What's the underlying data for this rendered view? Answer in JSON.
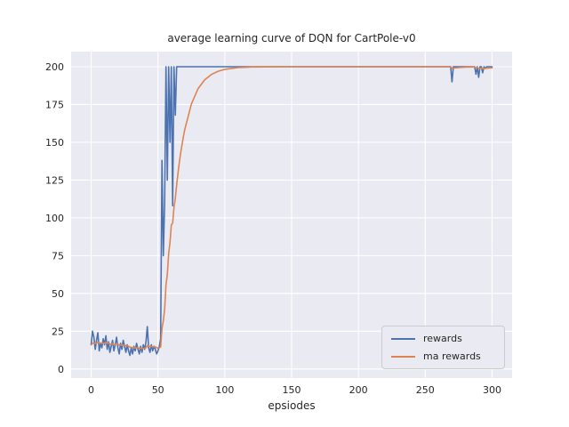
{
  "figure": {
    "title": "average learning curve of DQN for CartPole-v0",
    "xlabel": "epsiodes",
    "background": "#ffffff",
    "axes_background": "#eaeaf2",
    "grid_color": "#ffffff",
    "text_color": "#262626"
  },
  "legend": {
    "entries": [
      {
        "label": "rewards",
        "color": "#4c72b0"
      },
      {
        "label": "ma rewards",
        "color": "#dd8452"
      }
    ]
  },
  "chart_data": {
    "type": "line",
    "title": "average learning curve of DQN for CartPole-v0",
    "xlabel": "epsiodes",
    "xlim": [
      -15,
      315
    ],
    "ylim": [
      -6,
      210
    ],
    "xticks": [
      0,
      50,
      100,
      150,
      200,
      250,
      300
    ],
    "yticks": [
      0,
      25,
      50,
      75,
      100,
      125,
      150,
      175,
      200
    ],
    "grid": true,
    "legend_position": "lower right",
    "x": [
      0,
      1,
      2,
      3,
      4,
      5,
      6,
      7,
      8,
      9,
      10,
      11,
      12,
      13,
      14,
      15,
      16,
      17,
      18,
      19,
      20,
      21,
      22,
      23,
      24,
      25,
      26,
      27,
      28,
      29,
      30,
      31,
      32,
      33,
      34,
      35,
      36,
      37,
      38,
      39,
      40,
      41,
      42,
      43,
      44,
      45,
      46,
      47,
      48,
      49,
      50,
      51,
      52,
      53,
      54,
      55,
      56,
      57,
      58,
      59,
      60,
      61,
      62,
      63,
      64,
      65,
      66,
      67,
      68,
      69,
      70,
      75,
      80,
      85,
      90,
      95,
      100,
      105,
      110,
      115,
      120,
      130,
      140,
      150,
      160,
      170,
      180,
      190,
      200,
      210,
      220,
      230,
      240,
      250,
      260,
      265,
      268,
      269,
      270,
      271,
      272,
      275,
      280,
      285,
      287,
      288,
      289,
      290,
      291,
      292,
      293,
      294,
      295,
      296,
      298,
      300
    ],
    "series": [
      {
        "name": "rewards",
        "color": "#4c72b0",
        "values": [
          16,
          25,
          21,
          13,
          19,
          24,
          12,
          17,
          14,
          20,
          16,
          22,
          13,
          18,
          11,
          15,
          19,
          12,
          16,
          21,
          14,
          10,
          17,
          13,
          19,
          15,
          11,
          16,
          12,
          9,
          14,
          10,
          15,
          12,
          17,
          13,
          10,
          15,
          11,
          16,
          13,
          18,
          28,
          14,
          11,
          16,
          12,
          15,
          13,
          10,
          12,
          15,
          20,
          138,
          75,
          110,
          200,
          125,
          200,
          150,
          200,
          108,
          200,
          168,
          200,
          200,
          200,
          200,
          200,
          200,
          200,
          200,
          200,
          200,
          200,
          200,
          200,
          200,
          200,
          200,
          200,
          200,
          200,
          200,
          200,
          200,
          200,
          200,
          200,
          200,
          200,
          200,
          200,
          200,
          200,
          200,
          200,
          200,
          190,
          200,
          200,
          200,
          200,
          200,
          200,
          195,
          200,
          193,
          200,
          200,
          196,
          200,
          199,
          200,
          200,
          200
        ]
      },
      {
        "name": "ma rewards",
        "color": "#dd8452",
        "values": [
          16.0,
          16.9,
          17.3,
          16.9,
          17.1,
          17.8,
          17.2,
          17.2,
          16.9,
          17.2,
          17.1,
          17.6,
          17.1,
          17.2,
          16.6,
          16.4,
          16.7,
          16.2,
          16.2,
          16.7,
          16.4,
          15.8,
          15.9,
          15.6,
          15.9,
          15.8,
          15.4,
          15.4,
          15.1,
          14.5,
          14.4,
          14.0,
          14.1,
          13.9,
          14.2,
          14.1,
          13.7,
          13.8,
          13.5,
          13.8,
          13.7,
          14.1,
          15.5,
          15.3,
          14.9,
          15.0,
          14.7,
          14.7,
          14.6,
          14.1,
          13.9,
          14.0,
          14.6,
          27.0,
          31.8,
          39.6,
          55.6,
          62.6,
          76.3,
          83.7,
          95.3,
          96.6,
          106.9,
          113.0,
          121.7,
          129.6,
          136.6,
          142.9,
          148.6,
          153.8,
          158.4,
          175.4,
          185.5,
          191.4,
          194.9,
          197.0,
          198.2,
          198.9,
          199.4,
          199.6,
          199.8,
          199.9,
          200,
          200,
          200,
          200,
          200,
          200,
          200,
          200,
          200,
          200,
          200,
          200,
          200,
          200,
          200,
          200,
          199.0,
          199.1,
          199.2,
          199.4,
          199.7,
          199.8,
          199.8,
          199.3,
          199.4,
          198.8,
          198.9,
          199.0,
          198.7,
          198.8,
          198.9,
          199.0,
          199.2,
          199.3
        ]
      }
    ]
  }
}
